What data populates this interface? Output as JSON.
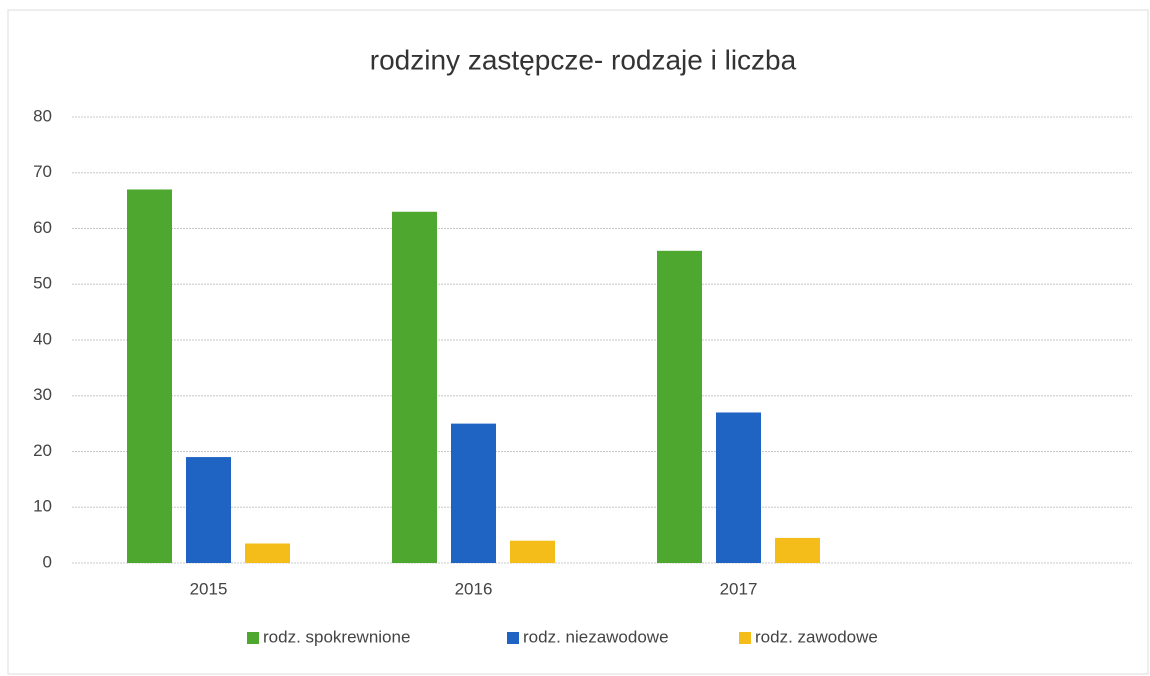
{
  "chart_data": {
    "type": "bar",
    "title": "rodziny zastępcze- rodzaje i liczba",
    "categories": [
      "2015",
      "2016",
      "2017",
      null
    ],
    "series": [
      {
        "name": "rodz. spokrewnione",
        "color": "#4ea72e",
        "values": [
          67,
          63,
          56,
          null
        ]
      },
      {
        "name": "rodz. niezawodowe",
        "color": "#1f63c3",
        "values": [
          19,
          25,
          27,
          null
        ]
      },
      {
        "name": "rodz. zawodowe",
        "color": "#f5bd1a",
        "values": [
          3.5,
          4,
          4.5,
          null
        ]
      }
    ],
    "ylim": [
      0,
      80
    ],
    "yticks": [
      0,
      10,
      20,
      30,
      40,
      50,
      60,
      70,
      80
    ],
    "grid": true,
    "legend": "bottom"
  }
}
